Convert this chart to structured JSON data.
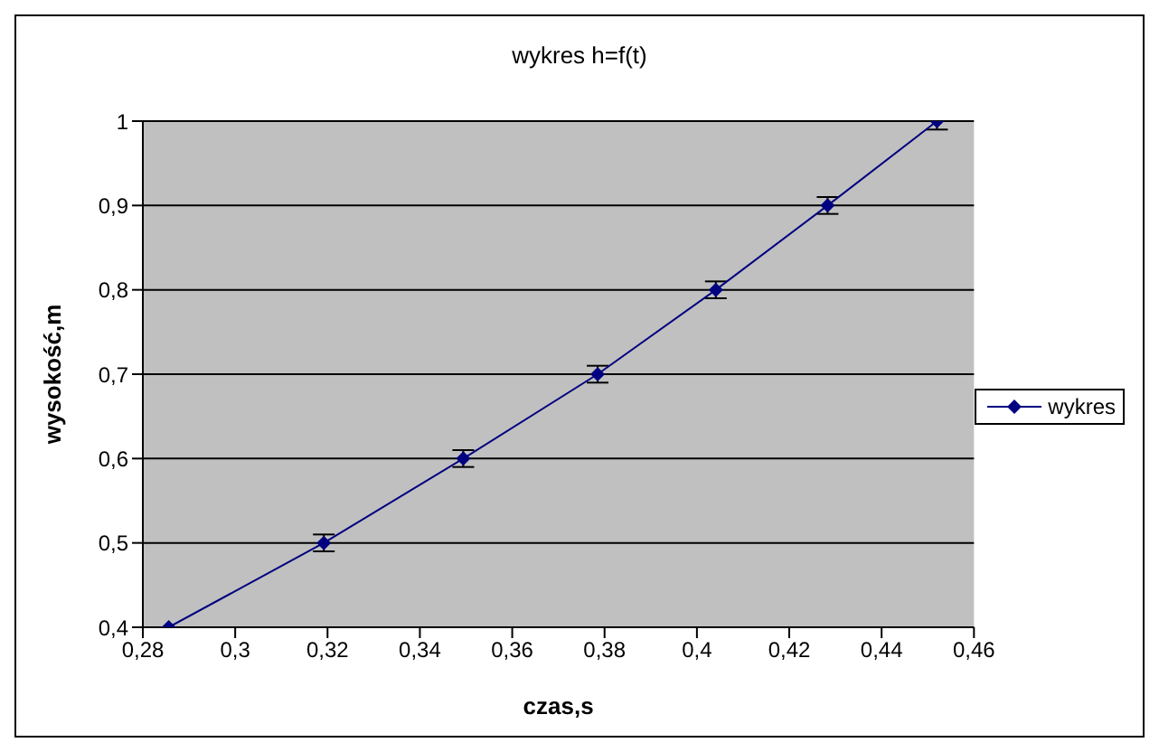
{
  "chart_data": {
    "type": "line",
    "title": "wykres h=f(t)",
    "xlabel": "czas,s",
    "ylabel": "wysokość,m",
    "x": [
      0.2856,
      0.3192,
      0.3494,
      0.3785,
      0.4041,
      0.4283,
      0.452
    ],
    "series": [
      {
        "name": "wykres",
        "color": "#000080",
        "values": [
          0.4,
          0.5,
          0.6,
          0.7,
          0.8,
          0.9,
          1.0
        ],
        "errors": [
          null,
          0.01,
          0.01,
          0.01,
          0.01,
          0.01,
          [
            0.99,
            1
          ]
        ]
      }
    ],
    "xlim": [
      0.28,
      0.46
    ],
    "xticks": [
      {
        "value": 0.28,
        "label": "0,28"
      },
      {
        "value": 0.3,
        "label": "0,3"
      },
      {
        "value": 0.32,
        "label": "0,32"
      },
      {
        "value": 0.34,
        "label": "0,34"
      },
      {
        "value": 0.36,
        "label": "0,36"
      },
      {
        "value": 0.38,
        "label": "0,38"
      },
      {
        "value": 0.4,
        "label": "0,4"
      },
      {
        "value": 0.42,
        "label": "0,42"
      },
      {
        "value": 0.44,
        "label": "0,44"
      },
      {
        "value": 0.46,
        "label": "0,46"
      }
    ],
    "ylim": [
      0.4,
      1
    ],
    "yticks": [
      {
        "value": 0.4,
        "label": "0,4"
      },
      {
        "value": 0.5,
        "label": "0,5"
      },
      {
        "value": 0.6,
        "label": "0,6"
      },
      {
        "value": 0.7,
        "label": "0,7"
      },
      {
        "value": 0.8,
        "label": "0,8"
      },
      {
        "value": 0.9,
        "label": "0,9"
      },
      {
        "value": 1,
        "label": "1"
      }
    ],
    "grid": "y",
    "legend": "right",
    "marker": "diamond",
    "line_style": "solid"
  }
}
